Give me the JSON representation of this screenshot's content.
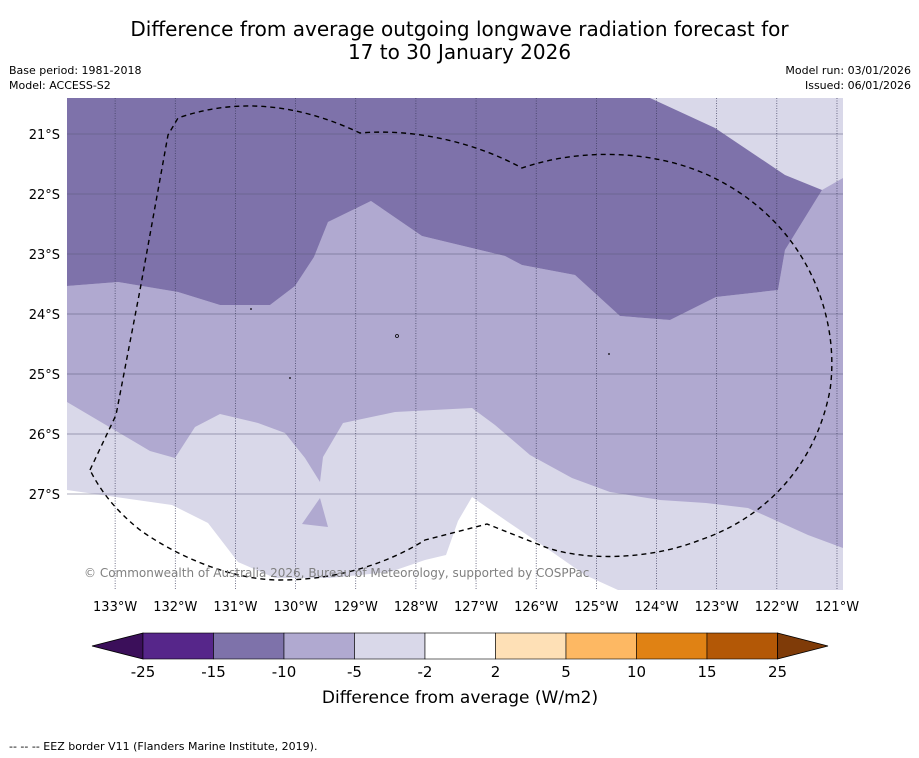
{
  "title": {
    "line1": "Difference from average outgoing longwave radiation forecast for",
    "line2": "17 to 30 January 2026"
  },
  "meta": {
    "base_period": "Base period: 1981-2018",
    "model": "Model: ACCESS-S2",
    "model_run": "Model run: 03/01/2026",
    "issued": "Issued: 06/01/2026"
  },
  "map": {
    "copyright": "© Commonwealth of Australia 2026, Bureau of Meteorology, supported by COSPPac",
    "lat_labels": [
      "21°S",
      "22°S",
      "23°S",
      "24°S",
      "25°S",
      "26°S",
      "27°S"
    ],
    "lon_labels": [
      "133°W",
      "132°W",
      "131°W",
      "130°W",
      "129°W",
      "128°W",
      "127°W",
      "126°W",
      "125°W",
      "124°W",
      "123°W",
      "122°W",
      "121°W"
    ],
    "lat_range": [
      20.4,
      28.6
    ],
    "lon_range": [
      133.8,
      120.9
    ],
    "colors": {
      "dark_purple": "#7e72aa",
      "mid_purple": "#b0a9d0",
      "light_purple": "#d9d8e9",
      "white": "#ffffff"
    }
  },
  "colorbar": {
    "ticks": [
      "-25",
      "-15",
      "-10",
      "-5",
      "-2",
      "2",
      "5",
      "10",
      "15",
      "25"
    ],
    "colors": [
      "#3b0f5a",
      "#56268a",
      "#7e72aa",
      "#b0a9d0",
      "#d9d8e9",
      "#ffffff",
      "#fee0b6",
      "#fdb863",
      "#e08214",
      "#b35806",
      "#7f3b08"
    ],
    "label": "Difference from average (W/m2)"
  },
  "footer": {
    "legend": "--  --  -- EEZ border V11 (Flanders Marine Institute, 2019)."
  }
}
